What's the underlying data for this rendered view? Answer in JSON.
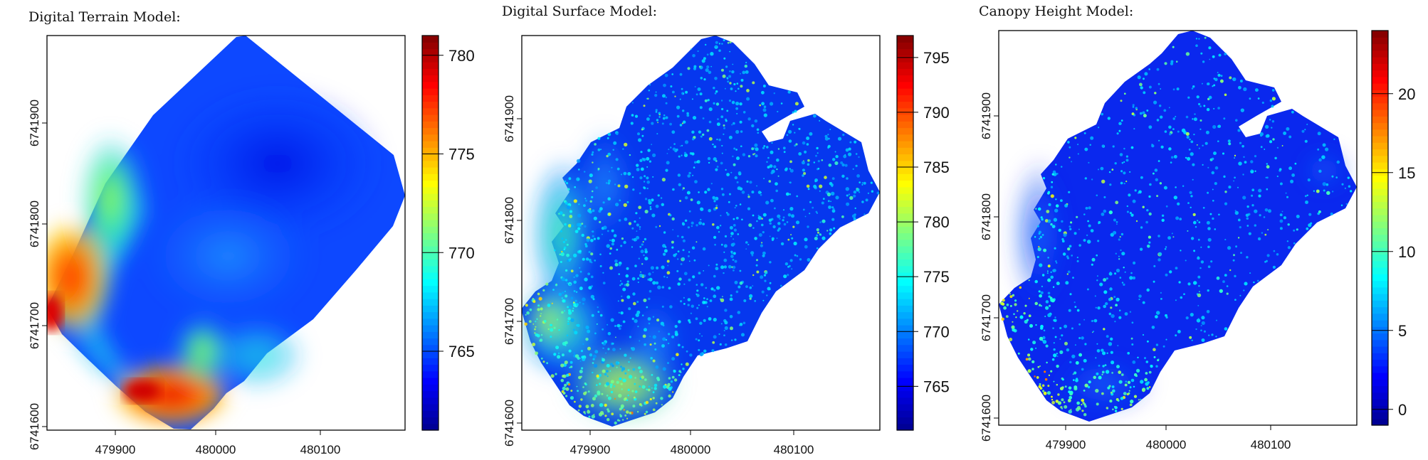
{
  "chart_data": [
    {
      "type": "heatmap",
      "title": "Digital Terrain Model:",
      "x_ticks": [
        "479900",
        "480000",
        "480100"
      ],
      "y_ticks": [
        "6741600",
        "6741700",
        "6741800",
        "6741900"
      ],
      "colorbar": {
        "range": [
          761,
          781
        ],
        "ticks": [
          "765",
          "770",
          "775",
          "780"
        ]
      },
      "grid": false
    },
    {
      "type": "heatmap",
      "title": "Digital Surface Model:",
      "x_ticks": [
        "479900",
        "480000",
        "480100"
      ],
      "y_ticks": [
        "6741600",
        "6741700",
        "6741800",
        "6741900"
      ],
      "colorbar": {
        "range": [
          761,
          797
        ],
        "ticks": [
          "765",
          "770",
          "775",
          "780",
          "785",
          "790",
          "795"
        ]
      },
      "grid": false
    },
    {
      "type": "heatmap",
      "title": "Canopy Height Model:",
      "x_ticks": [
        "479900",
        "480000",
        "480100"
      ],
      "y_ticks": [
        "6741600",
        "6741700",
        "6741800",
        "6741900"
      ],
      "colorbar": {
        "range": [
          -1,
          24
        ],
        "ticks": [
          "0",
          "5",
          "10",
          "15",
          "20"
        ]
      },
      "grid": false
    }
  ],
  "colors": {
    "jet_stops": [
      "#00008f",
      "#0000ff",
      "#0080ff",
      "#00ffff",
      "#80ff80",
      "#ffff00",
      "#ff8000",
      "#ff0000",
      "#800000"
    ],
    "base_blue": "#0a3cff",
    "dsm_base_blue": "#0637ee",
    "chm_base_blue": "#0a28ee"
  }
}
